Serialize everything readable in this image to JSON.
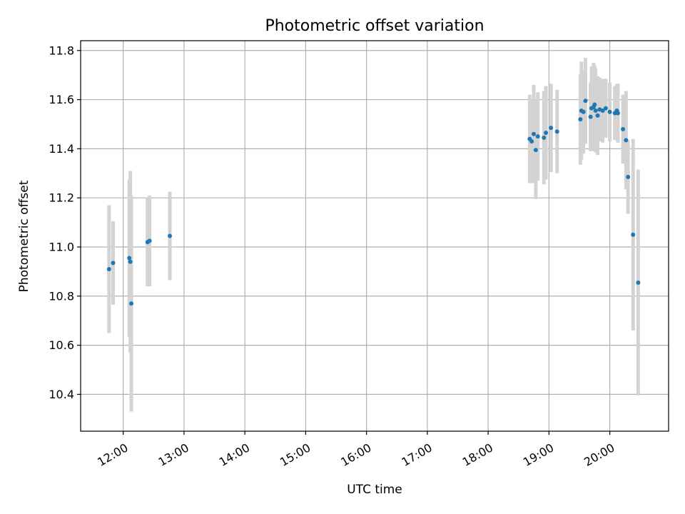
{
  "chart_data": {
    "type": "scatter",
    "title": "Photometric offset variation",
    "xlabel": "UTC time",
    "ylabel": "Photometric offset",
    "xlim": [
      "11:18",
      "20:58"
    ],
    "ylim": [
      10.25,
      11.84
    ],
    "grid": true,
    "x_ticks": [
      "12:00",
      "13:00",
      "14:00",
      "15:00",
      "16:00",
      "17:00",
      "18:00",
      "19:00",
      "20:00"
    ],
    "y_ticks": [
      "10.4",
      "10.6",
      "10.8",
      "11.0",
      "11.2",
      "11.4",
      "11.6",
      "11.8"
    ],
    "point_color": "#1f77b4",
    "errorbar_color": "#d3d3d3",
    "series": [
      {
        "points": [
          {
            "x": "11:46",
            "y": 10.91,
            "err": 0.26
          },
          {
            "x": "11:50",
            "y": 10.935,
            "err": 0.17
          },
          {
            "x": "12:06",
            "y": 10.955,
            "err": 0.32
          },
          {
            "x": "12:07",
            "y": 10.94,
            "err": 0.37
          },
          {
            "x": "12:08",
            "y": 10.77,
            "err": 0.44
          },
          {
            "x": "12:24",
            "y": 11.02,
            "err": 0.18
          },
          {
            "x": "12:26",
            "y": 11.025,
            "err": 0.185
          },
          {
            "x": "12:46",
            "y": 11.045,
            "err": 0.18
          },
          {
            "x": "18:41",
            "y": 11.44,
            "err": 0.18
          },
          {
            "x": "18:43",
            "y": 11.43,
            "err": 0.17
          },
          {
            "x": "18:45",
            "y": 11.46,
            "err": 0.2
          },
          {
            "x": "18:47",
            "y": 11.395,
            "err": 0.2
          },
          {
            "x": "18:49",
            "y": 11.45,
            "err": 0.18
          },
          {
            "x": "18:55",
            "y": 11.445,
            "err": 0.19
          },
          {
            "x": "18:57",
            "y": 11.465,
            "err": 0.19
          },
          {
            "x": "19:02",
            "y": 11.485,
            "err": 0.18
          },
          {
            "x": "19:08",
            "y": 11.47,
            "err": 0.17
          },
          {
            "x": "19:31",
            "y": 11.52,
            "err": 0.185
          },
          {
            "x": "19:32",
            "y": 11.555,
            "err": 0.2
          },
          {
            "x": "19:34",
            "y": 11.55,
            "err": 0.17
          },
          {
            "x": "19:36",
            "y": 11.595,
            "err": 0.175
          },
          {
            "x": "19:41",
            "y": 11.53,
            "err": 0.14
          },
          {
            "x": "19:42",
            "y": 11.565,
            "err": 0.17
          },
          {
            "x": "19:44",
            "y": 11.57,
            "err": 0.18
          },
          {
            "x": "19:45",
            "y": 11.58,
            "err": 0.16
          },
          {
            "x": "19:46",
            "y": 11.555,
            "err": 0.17
          },
          {
            "x": "19:48",
            "y": 11.535,
            "err": 0.16
          },
          {
            "x": "19:50",
            "y": 11.56,
            "err": 0.13
          },
          {
            "x": "19:53",
            "y": 11.555,
            "err": 0.13
          },
          {
            "x": "19:56",
            "y": 11.565,
            "err": 0.12
          },
          {
            "x": "20:00",
            "y": 11.55,
            "err": 0.12
          },
          {
            "x": "20:05",
            "y": 11.545,
            "err": 0.11
          },
          {
            "x": "20:07",
            "y": 11.555,
            "err": 0.11
          },
          {
            "x": "20:08",
            "y": 11.545,
            "err": 0.12
          },
          {
            "x": "20:13",
            "y": 11.48,
            "err": 0.14
          },
          {
            "x": "20:16",
            "y": 11.435,
            "err": 0.2
          },
          {
            "x": "20:18",
            "y": 11.285,
            "err": 0.15
          },
          {
            "x": "20:23",
            "y": 11.05,
            "err": 0.39
          },
          {
            "x": "20:28",
            "y": 10.855,
            "err": 0.46
          }
        ]
      }
    ]
  }
}
